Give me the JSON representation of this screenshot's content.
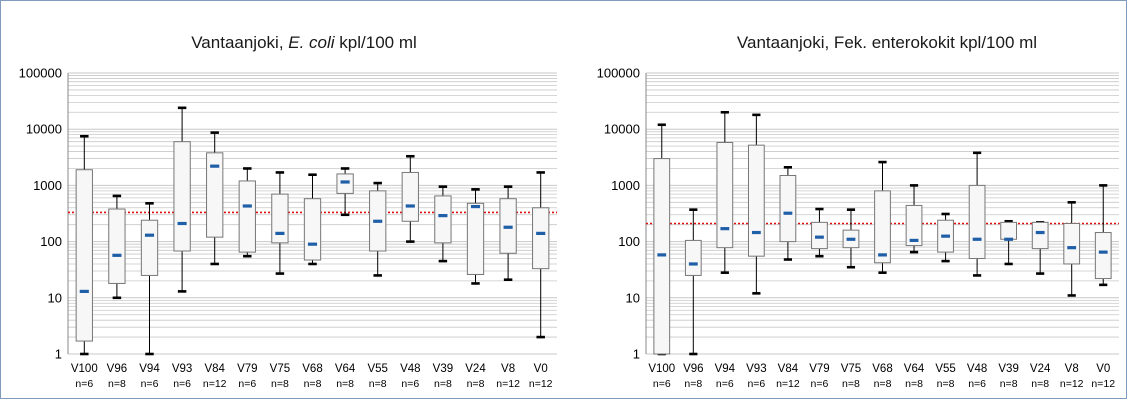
{
  "chart_data": [
    {
      "type": "boxplot",
      "title_parts": [
        "Vantaanjoki, ",
        "E. coli",
        " kpl/100 ml"
      ],
      "yscale": "log",
      "ylim": [
        1,
        100000
      ],
      "ytick_labels": [
        "1",
        "10",
        "100",
        "1000",
        "10000",
        "100000"
      ],
      "grid": true,
      "threshold": 330,
      "threshold_style": "red-dotted",
      "categories": [
        "V100",
        "V96",
        "V94",
        "V93",
        "V84",
        "V79",
        "V75",
        "V68",
        "V64",
        "V55",
        "V48",
        "V39",
        "V24",
        "V8",
        "V0"
      ],
      "n_labels": [
        "n=6",
        "n=8",
        "n=6",
        "n=6",
        "n=12",
        "n=6",
        "n=8",
        "n=8",
        "n=8",
        "n=8",
        "n=6",
        "n=8",
        "n=8",
        "n=12",
        "n=12"
      ],
      "boxes": [
        {
          "min": 1,
          "q1": 1.7,
          "median": 13,
          "q3": 1900,
          "max": 7500
        },
        {
          "min": 10,
          "q1": 18,
          "median": 57,
          "q3": 380,
          "max": 650
        },
        {
          "min": 1,
          "q1": 25,
          "median": 130,
          "q3": 240,
          "max": 480
        },
        {
          "min": 13,
          "q1": 68,
          "median": 210,
          "q3": 6000,
          "max": 24000
        },
        {
          "min": 40,
          "q1": 120,
          "median": 2200,
          "q3": 3800,
          "max": 8700
        },
        {
          "min": 55,
          "q1": 65,
          "median": 430,
          "q3": 1200,
          "max": 2000
        },
        {
          "min": 27,
          "q1": 95,
          "median": 140,
          "q3": 700,
          "max": 1700
        },
        {
          "min": 40,
          "q1": 47,
          "median": 90,
          "q3": 580,
          "max": 1550
        },
        {
          "min": 300,
          "q1": 720,
          "median": 1150,
          "q3": 1600,
          "max": 2000
        },
        {
          "min": 25,
          "q1": 68,
          "median": 230,
          "q3": 800,
          "max": 1100
        },
        {
          "min": 100,
          "q1": 230,
          "median": 430,
          "q3": 1700,
          "max": 3300
        },
        {
          "min": 45,
          "q1": 95,
          "median": 290,
          "q3": 650,
          "max": 950
        },
        {
          "min": 18,
          "q1": 26,
          "median": 420,
          "q3": 480,
          "max": 850
        },
        {
          "min": 21,
          "q1": 62,
          "median": 180,
          "q3": 580,
          "max": 950
        },
        {
          "min": 2,
          "q1": 33,
          "median": 140,
          "q3": 400,
          "max": 1700
        }
      ]
    },
    {
      "type": "boxplot",
      "title_parts": [
        "Vantaanjoki, Fek. enterokokit kpl/100 ml",
        "",
        ""
      ],
      "yscale": "log",
      "ylim": [
        1,
        100000
      ],
      "ytick_labels": [
        "1",
        "10",
        "100",
        "1000",
        "10000",
        "100000"
      ],
      "grid": true,
      "threshold": 210,
      "threshold_style": "red-dotted",
      "categories": [
        "V100",
        "V96",
        "V94",
        "V93",
        "V84",
        "V79",
        "V75",
        "V68",
        "V64",
        "V55",
        "V48",
        "V39",
        "V24",
        "V8",
        "V0"
      ],
      "n_labels": [
        "n=6",
        "n=8",
        "n=6",
        "n=6",
        "n=12",
        "n=6",
        "n=8",
        "n=8",
        "n=8",
        "n=8",
        "n=6",
        "n=8",
        "n=8",
        "n=12",
        "n=12"
      ],
      "boxes": [
        {
          "min": 1,
          "q1": 1,
          "median": 58,
          "q3": 3000,
          "max": 12000
        },
        {
          "min": 1,
          "q1": 25,
          "median": 40,
          "q3": 105,
          "max": 370
        },
        {
          "min": 28,
          "q1": 78,
          "median": 170,
          "q3": 5800,
          "max": 20000
        },
        {
          "min": 12,
          "q1": 55,
          "median": 145,
          "q3": 5200,
          "max": 18000
        },
        {
          "min": 48,
          "q1": 100,
          "median": 320,
          "q3": 1500,
          "max": 2100
        },
        {
          "min": 55,
          "q1": 75,
          "median": 120,
          "q3": 220,
          "max": 380
        },
        {
          "min": 35,
          "q1": 78,
          "median": 110,
          "q3": 160,
          "max": 370
        },
        {
          "min": 28,
          "q1": 42,
          "median": 58,
          "q3": 800,
          "max": 2600
        },
        {
          "min": 65,
          "q1": 85,
          "median": 105,
          "q3": 440,
          "max": 1000
        },
        {
          "min": 45,
          "q1": 65,
          "median": 125,
          "q3": 240,
          "max": 310
        },
        {
          "min": 25,
          "q1": 50,
          "median": 110,
          "q3": 1000,
          "max": 3800
        },
        {
          "min": 40,
          "q1": 110,
          "median": 110,
          "q3": 220,
          "max": 230
        },
        {
          "min": 27,
          "q1": 75,
          "median": 145,
          "q3": 220,
          "max": 220
        },
        {
          "min": 11,
          "q1": 40,
          "median": 78,
          "q3": 210,
          "max": 500
        },
        {
          "min": 17,
          "q1": 22,
          "median": 65,
          "q3": 145,
          "max": 1000
        }
      ]
    }
  ],
  "colors": {
    "median": "#1f5fa8",
    "threshold": "#e01010",
    "grid": "#c8c8c8",
    "box_fill": "#f7f7f7",
    "box_stroke": "#777777",
    "whisker": "#000000",
    "frame": "#7f9bbd"
  }
}
